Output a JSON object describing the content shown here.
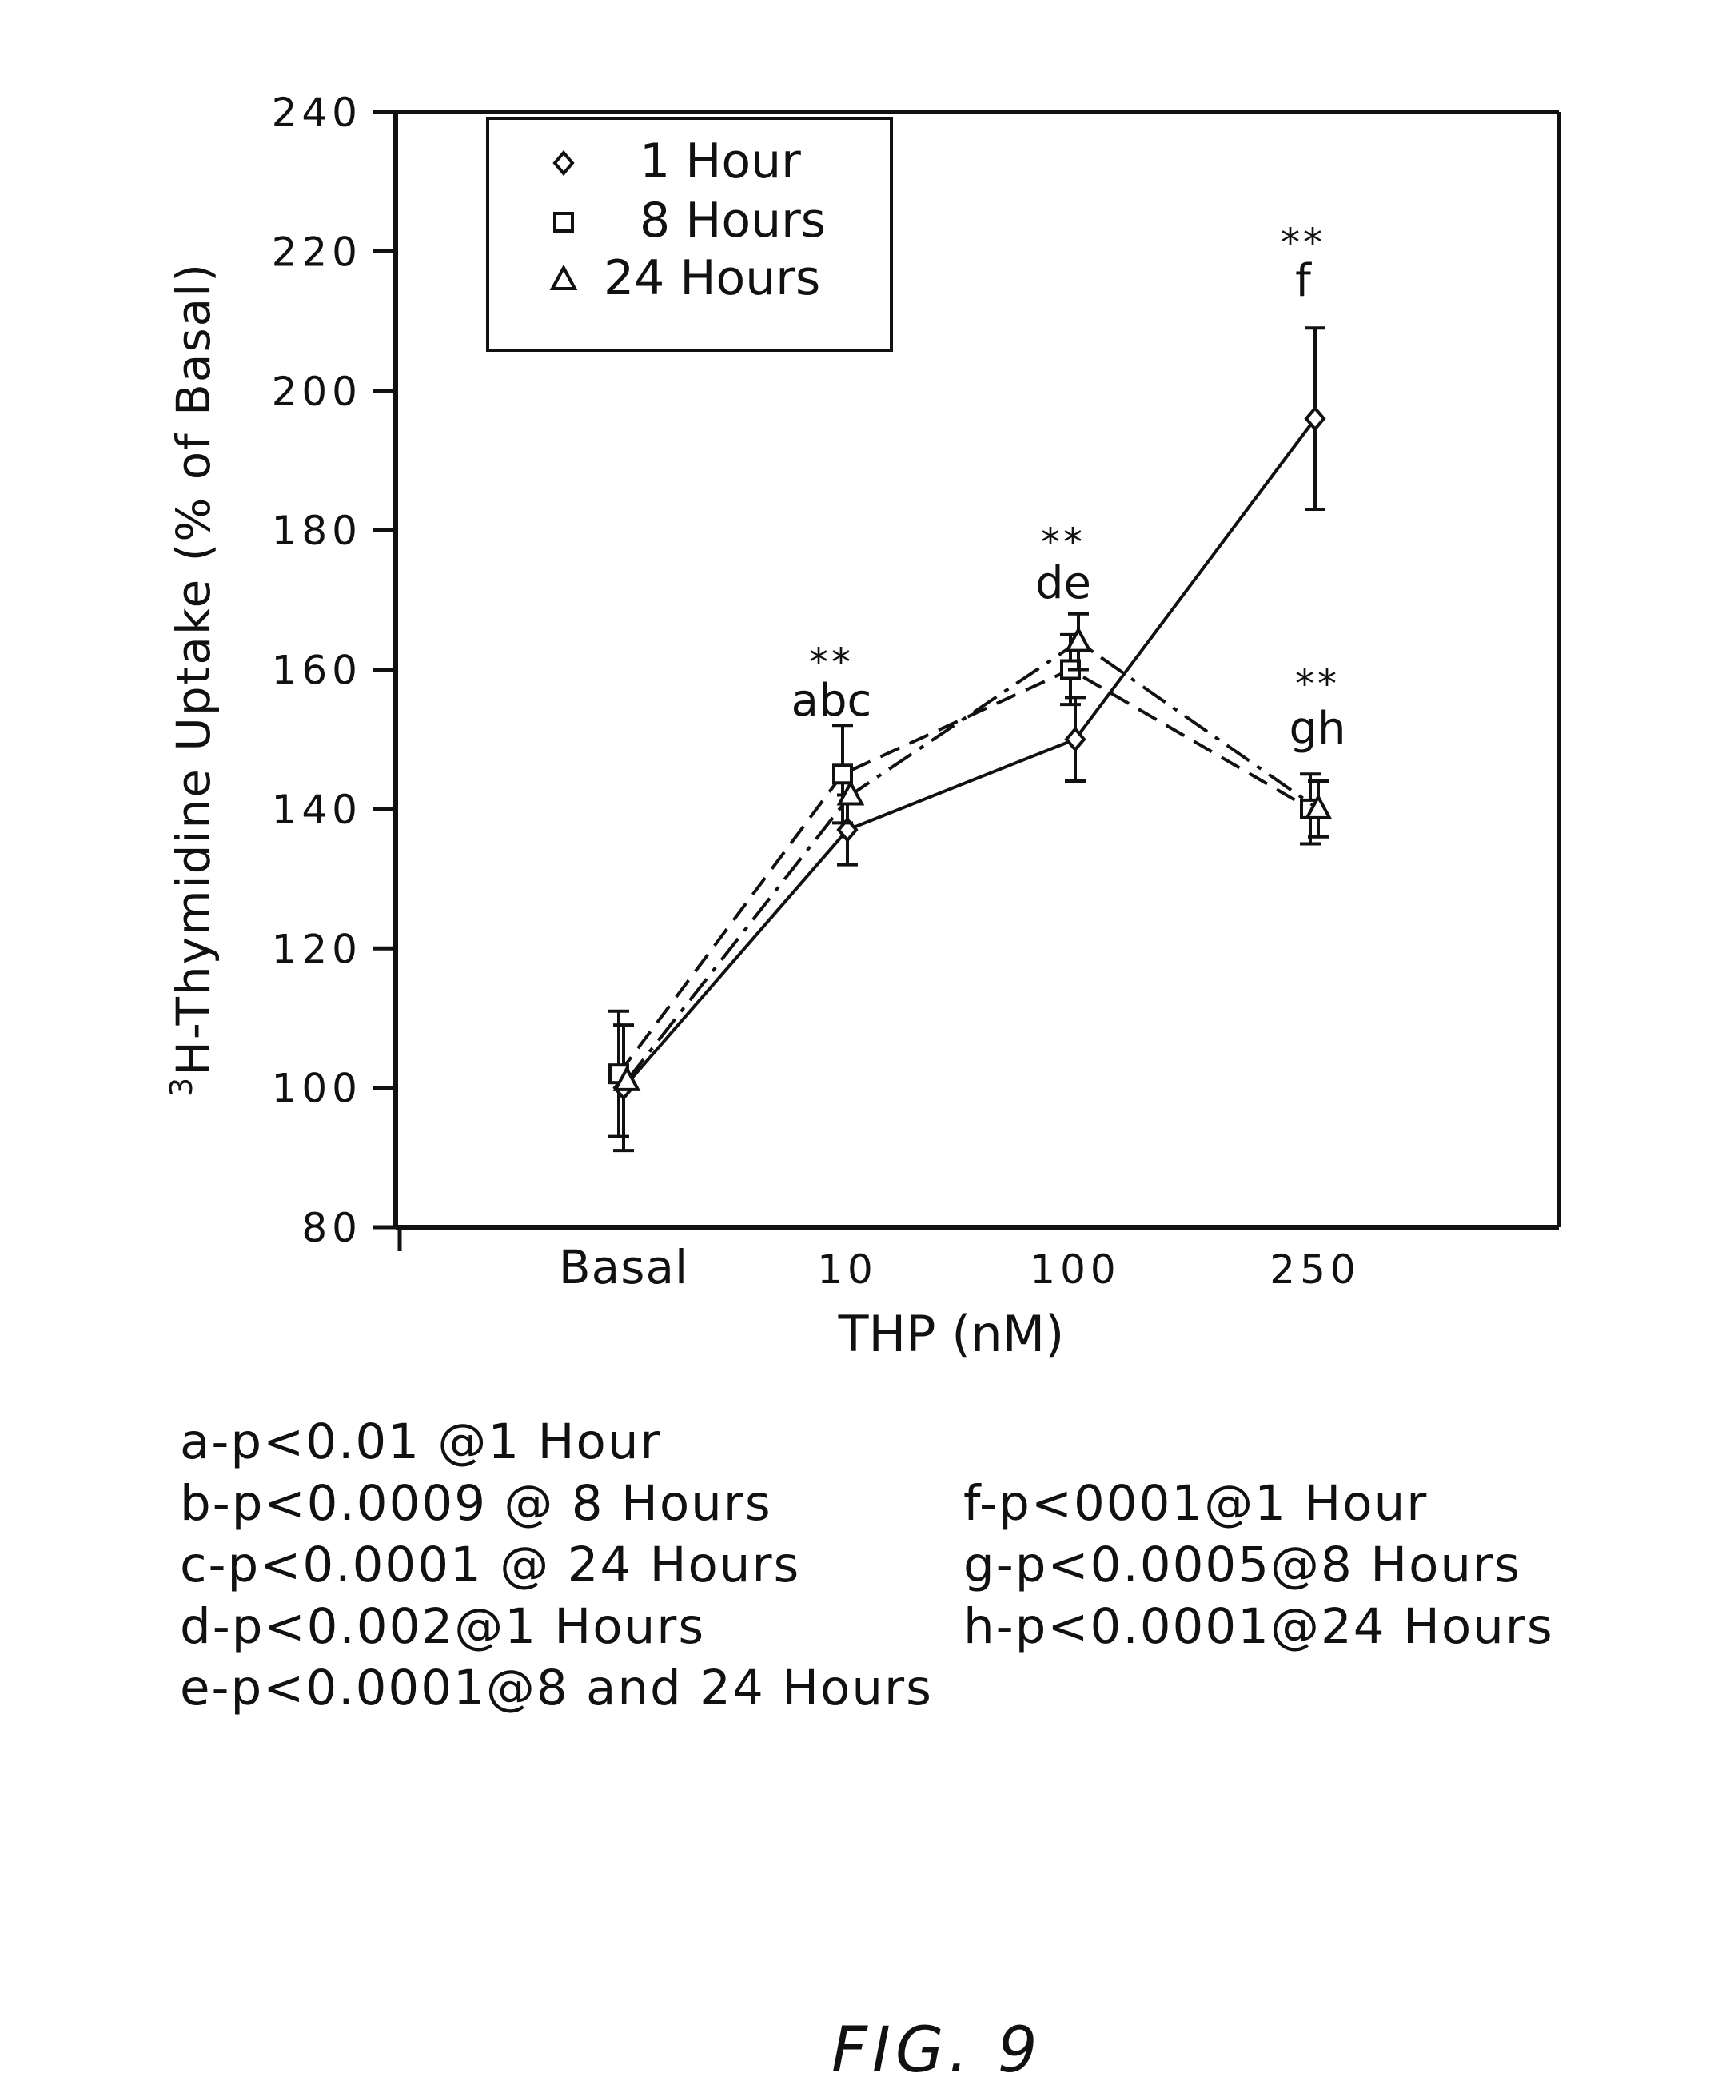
{
  "chart_data": {
    "type": "line",
    "title": "",
    "xlabel": "THP (nM)",
    "ylabel": "³H-Thymidine Uptake (% of Basal)",
    "ylabel_superscript": "3",
    "ylabel_text": "H-Thymidine Uptake (% of Basal)",
    "categories": [
      "Basal",
      "10",
      "100",
      "250"
    ],
    "ylim": [
      80,
      240
    ],
    "yticks": [
      "80",
      "100",
      "120",
      "140",
      "160",
      "180",
      "200",
      "220",
      "240"
    ],
    "grid": false,
    "legend_position": "top-left",
    "series": [
      {
        "name": "1 Hour",
        "marker": "diamond",
        "line": "solid",
        "values": [
          100,
          137,
          150,
          196
        ],
        "errors": [
          9,
          5,
          6,
          13
        ]
      },
      {
        "name": "8 Hours",
        "marker": "square",
        "line": "dashed",
        "values": [
          102,
          145,
          160,
          140
        ],
        "errors": [
          9,
          7,
          5,
          5
        ]
      },
      {
        "name": "24 Hours",
        "marker": "triangle",
        "line": "dashdot",
        "values": [
          101,
          142,
          164,
          140
        ],
        "errors": [
          0,
          0,
          4,
          4
        ]
      }
    ],
    "annotations": [
      {
        "category": "10",
        "stars": "**",
        "letters": "abc"
      },
      {
        "category": "100",
        "stars": "**",
        "letters": "de"
      },
      {
        "category": "250",
        "stars": "**",
        "letters": "f",
        "position": "above"
      },
      {
        "category": "250",
        "stars": "**",
        "letters": "gh",
        "position": "below"
      }
    ]
  },
  "footnotes": [
    "a-p<0.01 @1 Hour",
    "b-p<0.0009 @ 8 Hours",
    "c-p<0.0001 @ 24 Hours",
    "d-p<0.002@1 Hours",
    "e-p<0.0001@8 and 24 Hours",
    "f-p<0001@1 Hour",
    "g-p<0.0005@8 Hours",
    "h-p<0.0001@24 Hours"
  ],
  "figure_label": "FIG. 9"
}
